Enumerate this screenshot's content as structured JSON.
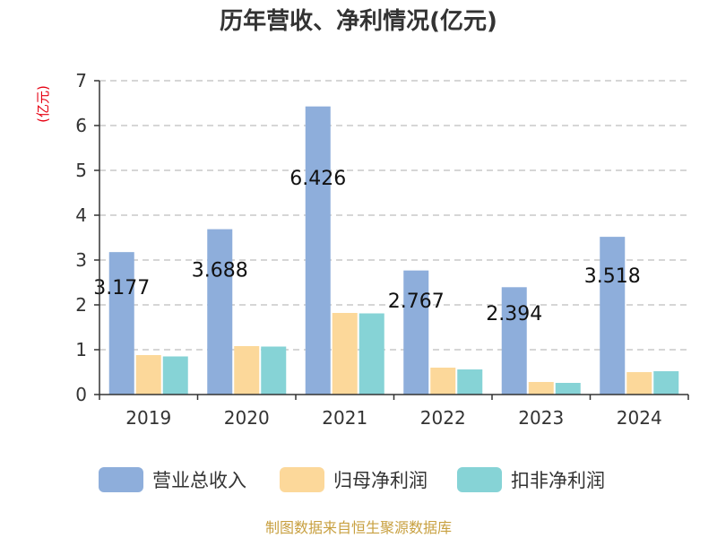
{
  "chart_data": {
    "type": "bar",
    "title": "历年营收、净利情况(亿元)",
    "unit_label": "(亿元)",
    "categories": [
      "2019",
      "2020",
      "2021",
      "2022",
      "2023",
      "2024"
    ],
    "ylim": [
      0,
      7
    ],
    "yticks": [
      0,
      1,
      2,
      3,
      4,
      5,
      6,
      7
    ],
    "grid": true,
    "legend_position": "bottom",
    "series": [
      {
        "name": "营业总收入",
        "color": "#8eaedb",
        "values": [
          3.177,
          3.688,
          6.426,
          2.767,
          2.394,
          3.518
        ],
        "labels": [
          "3.177",
          "3.688",
          "6.426",
          "2.767",
          "2.394",
          "3.518"
        ]
      },
      {
        "name": "归母净利润",
        "color": "#fcd89a",
        "values": [
          0.88,
          1.08,
          1.82,
          0.6,
          0.28,
          0.5
        ]
      },
      {
        "name": "扣非净利润",
        "color": "#86d3d6",
        "values": [
          0.85,
          1.07,
          1.81,
          0.56,
          0.26,
          0.52
        ]
      }
    ],
    "source": "制图数据来自恒生聚源数据库"
  }
}
